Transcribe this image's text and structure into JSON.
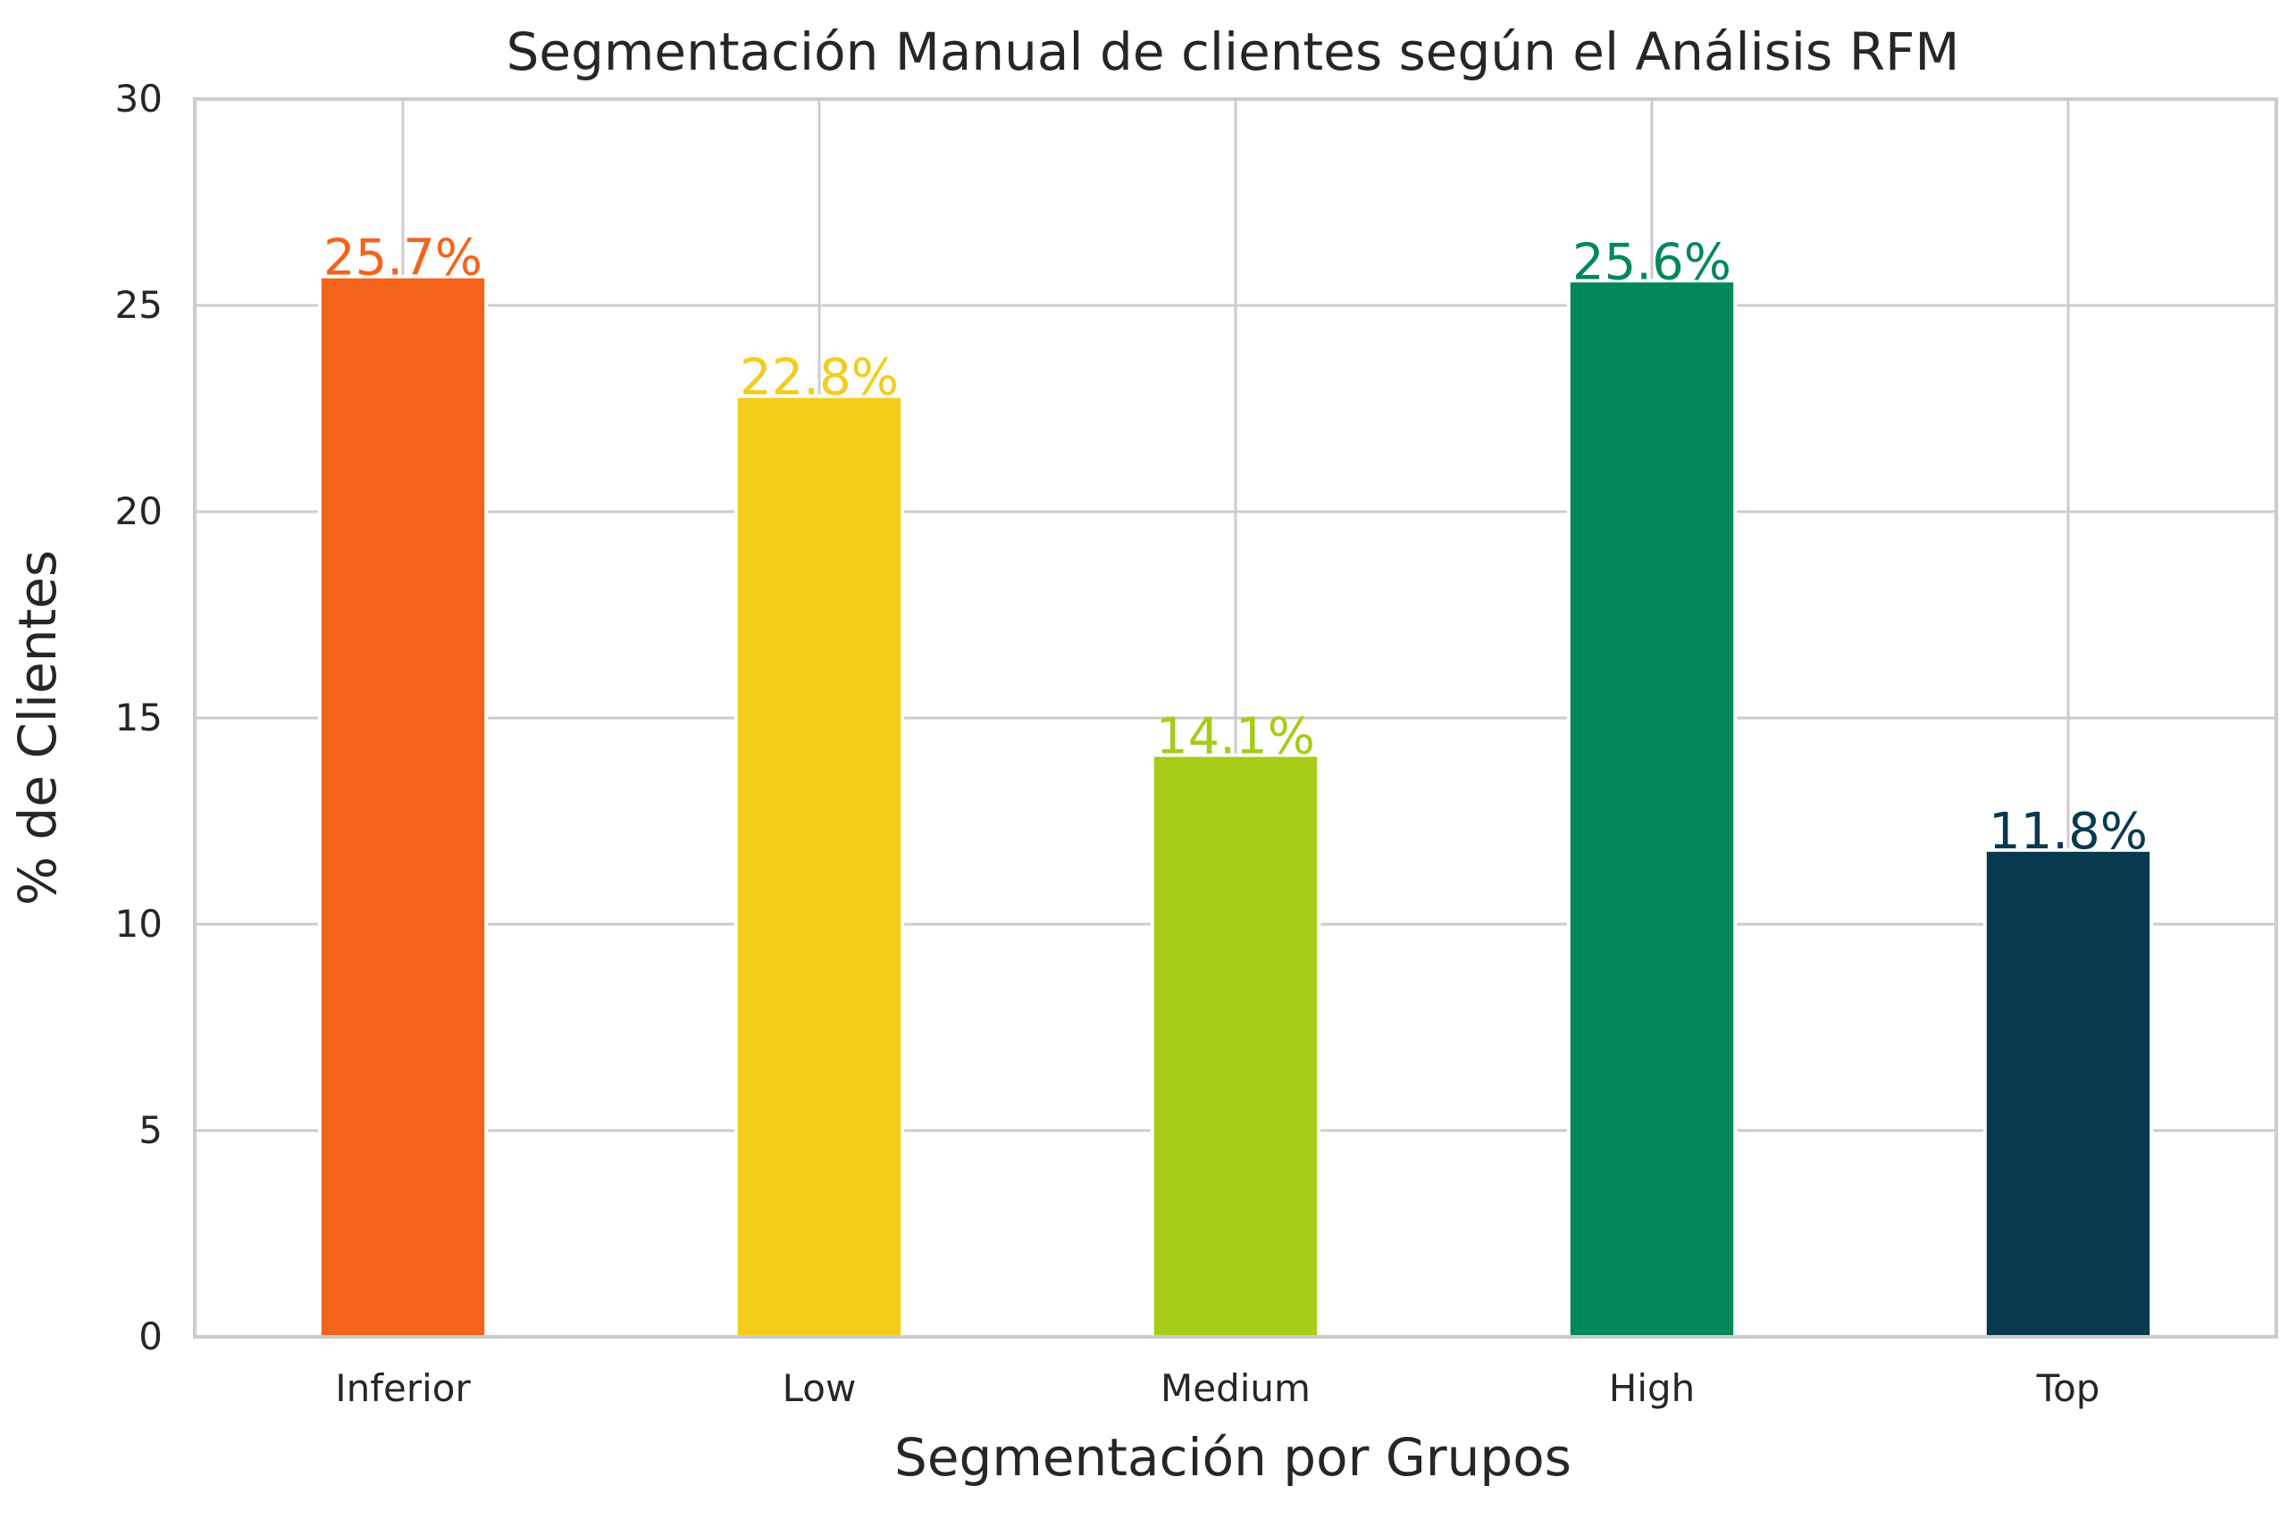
{
  "chart_data": {
    "type": "bar",
    "title": "Segmentación Manual de clientes según el Análisis RFM",
    "xlabel": "Segmentación por Grupos",
    "ylabel": "% de Clientes",
    "categories": [
      "Inferior",
      "Low",
      "Medium",
      "High",
      "Top"
    ],
    "values": [
      25.7,
      22.8,
      14.1,
      25.6,
      11.8
    ],
    "value_labels": [
      "25.7%",
      "22.8%",
      "14.1%",
      "25.6%",
      "11.8%"
    ],
    "colors": [
      "#f4631a",
      "#f4cc1a",
      "#a6cc17",
      "#00875c",
      "#083a4f"
    ],
    "ylim": [
      0,
      30
    ],
    "yticks": [
      0,
      5,
      10,
      15,
      20,
      25,
      30
    ],
    "grid": true,
    "legend": "none"
  }
}
